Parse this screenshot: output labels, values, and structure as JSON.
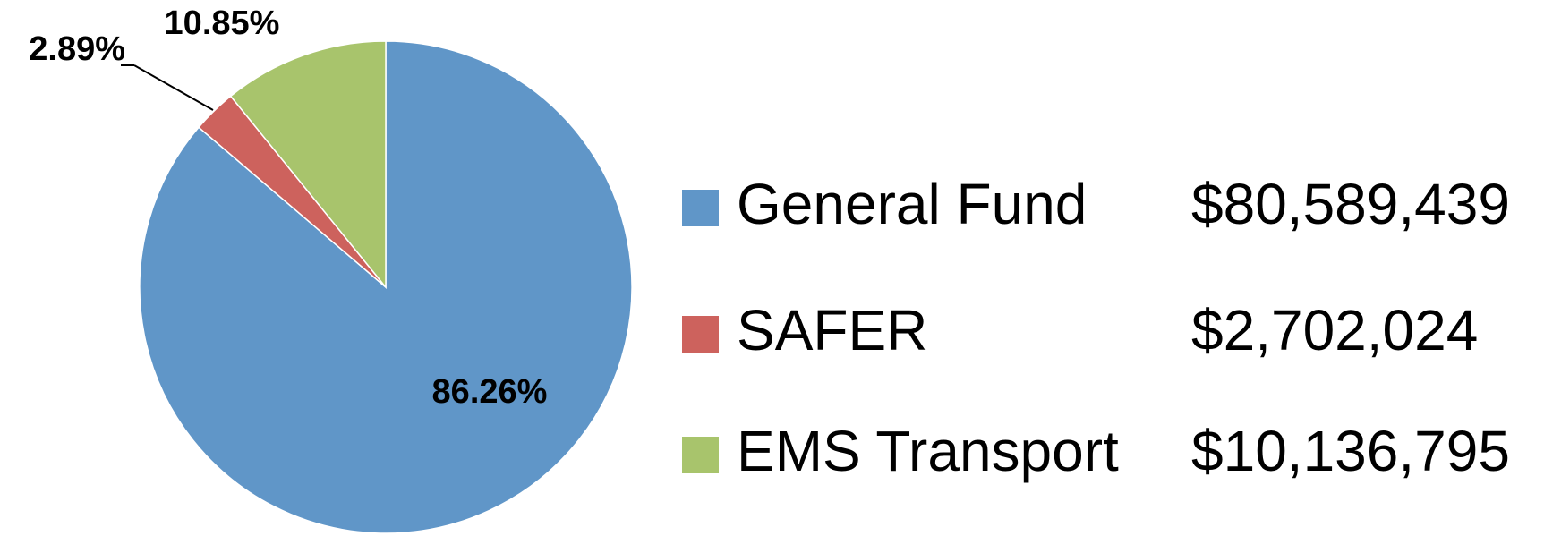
{
  "chart_data": {
    "type": "pie",
    "categories": [
      "General Fund",
      "SAFER",
      "EMS Transport"
    ],
    "values": [
      86.26,
      2.89,
      10.85
    ],
    "value_labels": [
      "86.26%",
      "2.89%",
      "10.85%"
    ],
    "colors": [
      "#6096c8",
      "#cd625d",
      "#a8c46c"
    ],
    "amounts": [
      "$80,589,439",
      "$2,702,024",
      "$10,136,795"
    ],
    "start_angle": 0,
    "direction": "clockwise"
  }
}
